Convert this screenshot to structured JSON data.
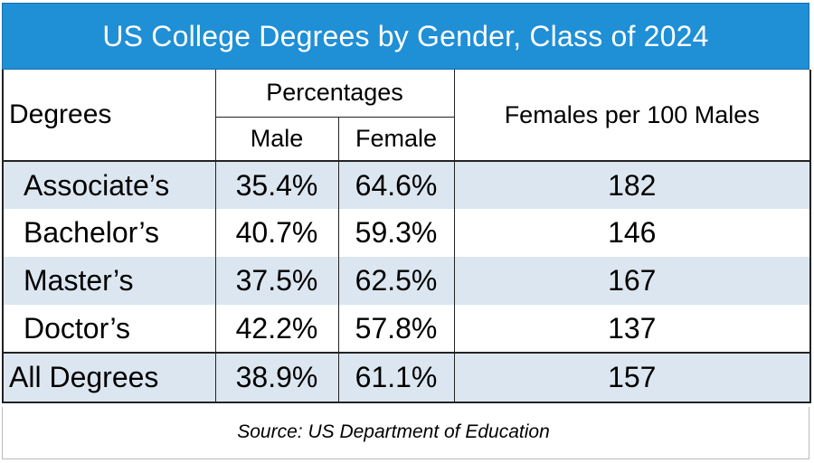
{
  "title": "US College Degrees by Gender, Class of 2024",
  "headers": {
    "degrees": "Degrees",
    "percentages": "Percentages",
    "male": "Male",
    "female": "Female",
    "ratio": "Females per 100 Males"
  },
  "rows": [
    {
      "degree": "Associate’s",
      "male": "35.4%",
      "female": "64.6%",
      "ratio": "182"
    },
    {
      "degree": "Bachelor’s",
      "male": "40.7%",
      "female": "59.3%",
      "ratio": "146"
    },
    {
      "degree": "Master’s",
      "male": "37.5%",
      "female": "62.5%",
      "ratio": "167"
    },
    {
      "degree": "Doctor’s",
      "male": "42.2%",
      "female": "57.8%",
      "ratio": "137"
    }
  ],
  "total": {
    "degree": "All Degrees",
    "male": "38.9%",
    "female": "61.1%",
    "ratio": "157"
  },
  "source": "Source: US Department of Education",
  "colors": {
    "title_background": "#1f8fd6",
    "title_text": "#ffffff",
    "shaded_row": "#dce6f0"
  }
}
